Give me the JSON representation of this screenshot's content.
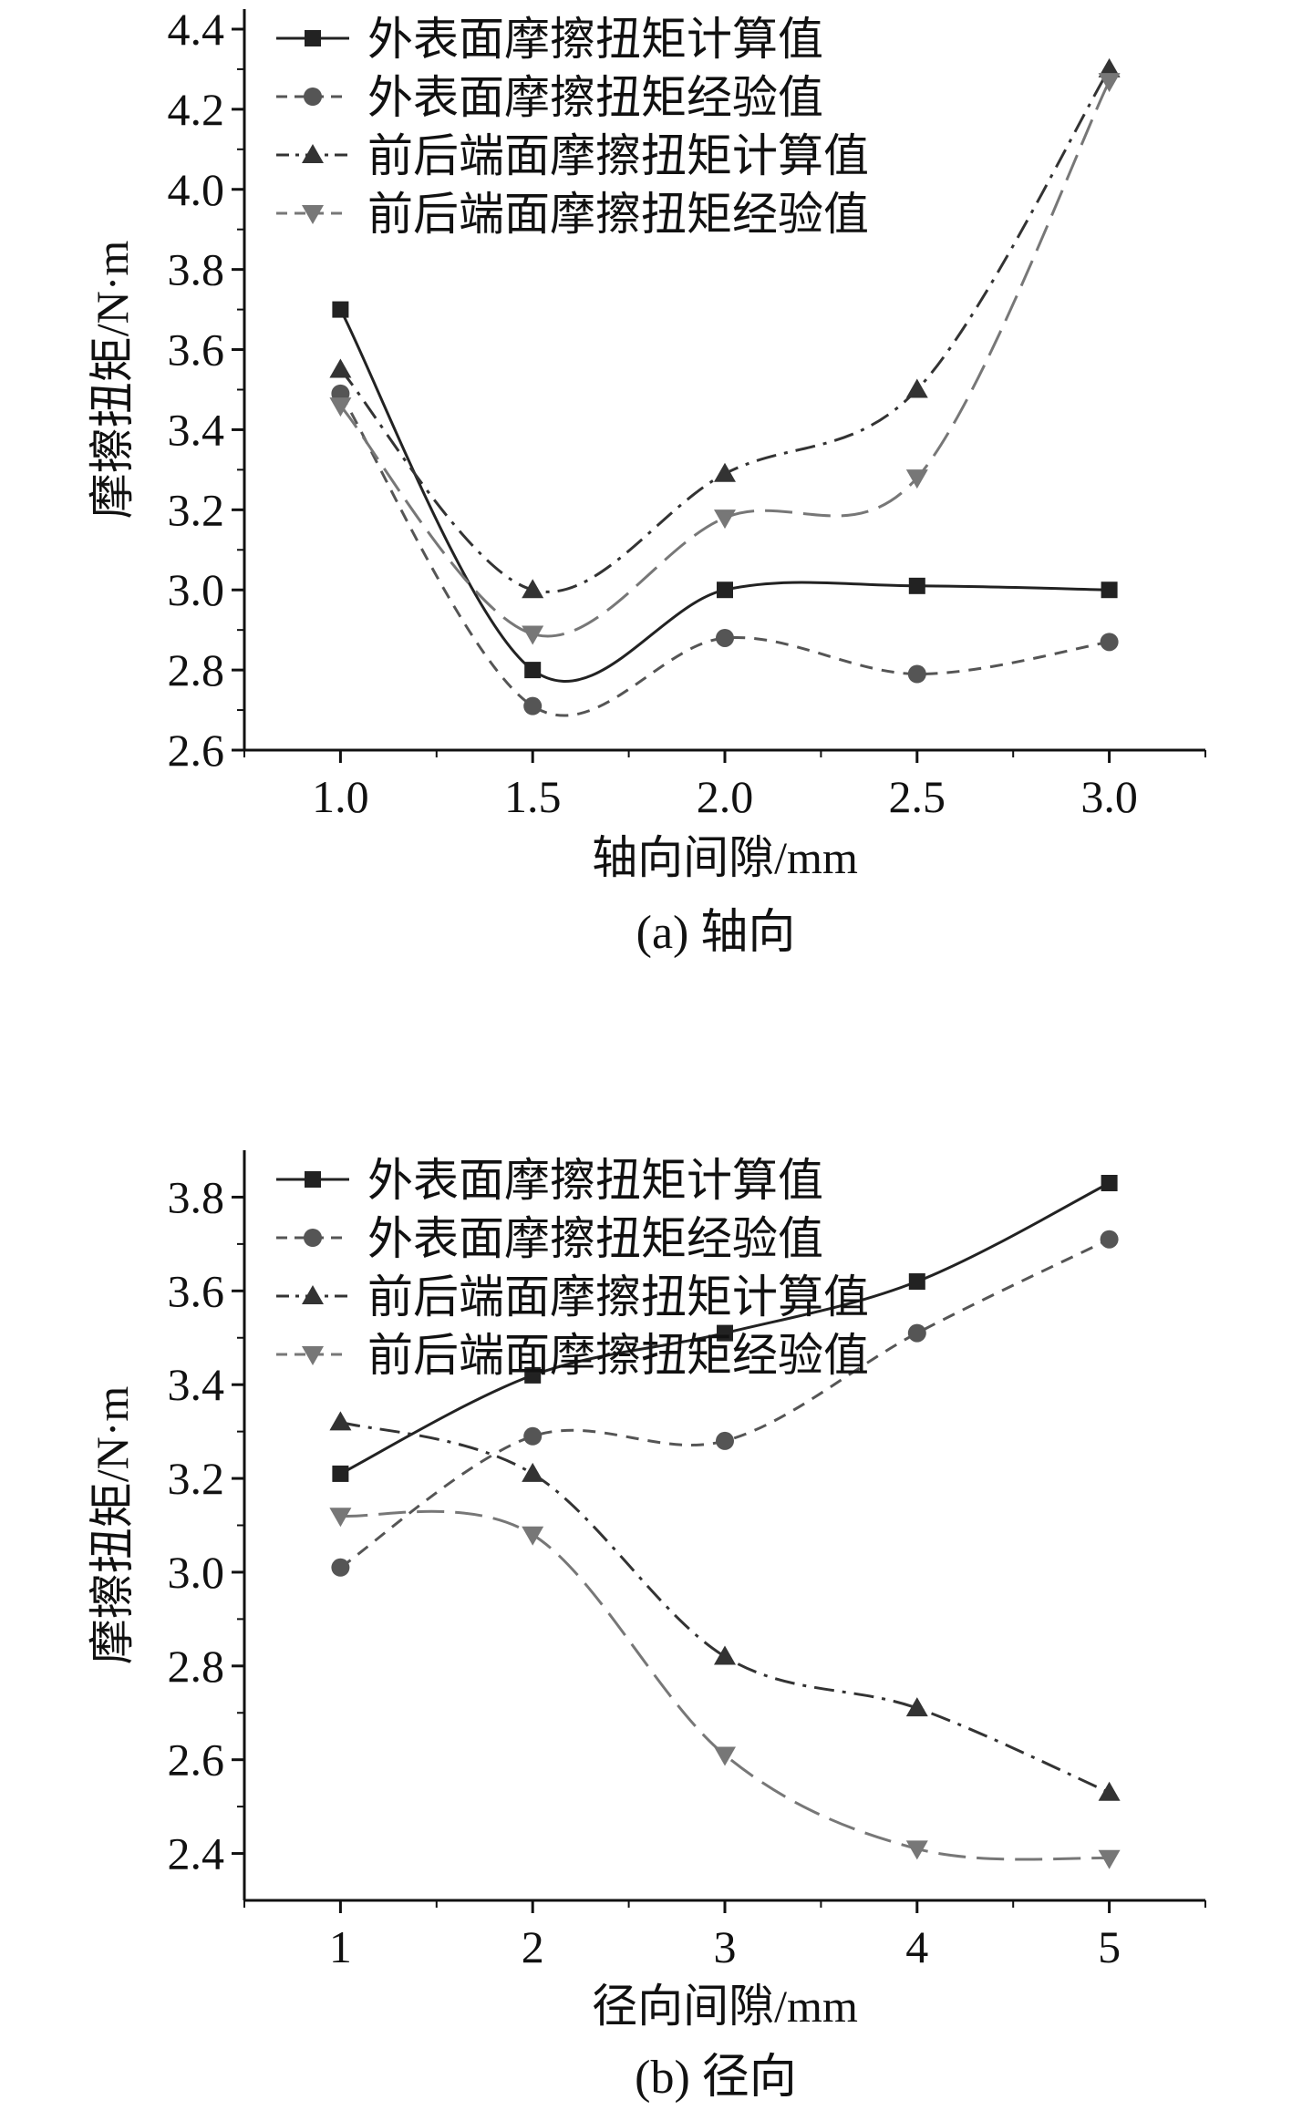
{
  "chart_data": [
    {
      "type": "line",
      "caption": "(a) 轴向",
      "xlabel": "轴向间隙/mm",
      "ylabel": "摩擦扭矩/N·m",
      "x": [
        1.0,
        1.5,
        2.0,
        2.5,
        3.0
      ],
      "x_ticks": [
        "1.0",
        "1.5",
        "2.0",
        "2.5",
        "3.0"
      ],
      "xlim": [
        0.75,
        3.25
      ],
      "ylim": [
        2.6,
        4.45
      ],
      "y_ticks": [
        2.6,
        2.8,
        3.0,
        3.2,
        3.4,
        3.6,
        3.8,
        4.0,
        4.2,
        4.4
      ],
      "y_tick_labels": [
        "2.6",
        "2.8",
        "3.0",
        "3.2",
        "3.4",
        "3.6",
        "3.8",
        "4.0",
        "4.2",
        "4.4"
      ],
      "legend_position": "top-left",
      "grid": false,
      "series": [
        {
          "name": "外表面摩擦扭矩计算值",
          "marker": "square",
          "line": "solid",
          "color": "#222222",
          "values": [
            3.7,
            2.8,
            3.0,
            3.01,
            3.0
          ]
        },
        {
          "name": "外表面摩擦扭矩经验值",
          "marker": "circle",
          "line": "dash",
          "color": "#555555",
          "values": [
            3.49,
            2.71,
            2.88,
            2.79,
            2.87
          ]
        },
        {
          "name": "前后端面摩擦扭矩计算值",
          "marker": "triangle-up",
          "line": "dashdot",
          "color": "#333333",
          "values": [
            3.55,
            3.0,
            3.29,
            3.5,
            4.3
          ]
        },
        {
          "name": "前后端面摩擦扭矩经验值",
          "marker": "triangle-down",
          "line": "longdash",
          "color": "#777777",
          "values": [
            3.46,
            2.89,
            3.18,
            3.28,
            4.27
          ]
        }
      ]
    },
    {
      "type": "line",
      "caption": "(b) 径向",
      "xlabel": "径向间隙/mm",
      "ylabel": "摩擦扭矩/N·m",
      "x": [
        1,
        2,
        3,
        4,
        5
      ],
      "x_ticks": [
        "1",
        "2",
        "3",
        "4",
        "5"
      ],
      "xlim": [
        0.5,
        5.5
      ],
      "ylim": [
        2.3,
        3.9
      ],
      "y_ticks": [
        2.4,
        2.6,
        2.8,
        3.0,
        3.2,
        3.4,
        3.6,
        3.8
      ],
      "y_tick_labels": [
        "2.4",
        "2.6",
        "2.8",
        "3.0",
        "3.2",
        "3.4",
        "3.6",
        "3.8"
      ],
      "legend_position": "top-left",
      "grid": false,
      "series": [
        {
          "name": "外表面摩擦扭矩计算值",
          "marker": "square",
          "line": "solid",
          "color": "#222222",
          "values": [
            3.21,
            3.42,
            3.51,
            3.62,
            3.83
          ]
        },
        {
          "name": "外表面摩擦扭矩经验值",
          "marker": "circle",
          "line": "dash",
          "color": "#555555",
          "values": [
            3.01,
            3.29,
            3.28,
            3.51,
            3.71
          ]
        },
        {
          "name": "前后端面摩擦扭矩计算值",
          "marker": "triangle-up",
          "line": "dashdot",
          "color": "#333333",
          "values": [
            3.32,
            3.21,
            2.82,
            2.71,
            2.53
          ]
        },
        {
          "name": "前后端面摩擦扭矩经验值",
          "marker": "triangle-down",
          "line": "longdash",
          "color": "#777777",
          "values": [
            3.12,
            3.08,
            2.61,
            2.41,
            2.39
          ]
        }
      ]
    }
  ]
}
